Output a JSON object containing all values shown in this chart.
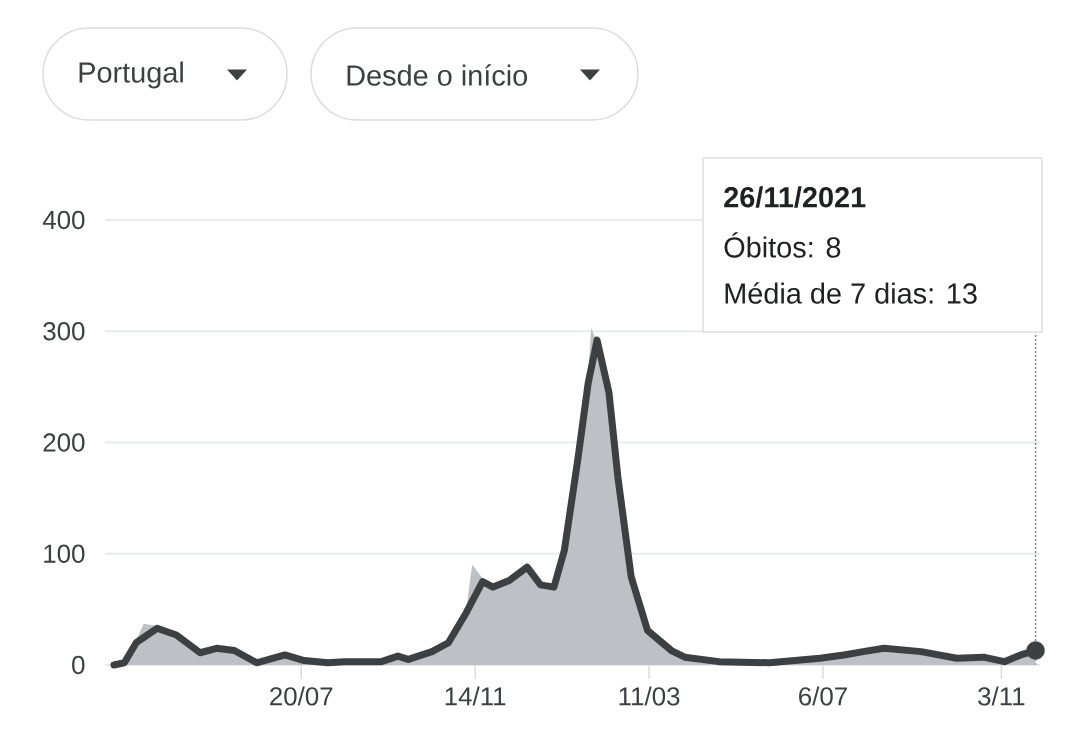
{
  "chart_data": {
    "type": "area",
    "annotations": [
      "Portugal",
      "Desde o início",
      "26/11/2021",
      "Óbitos: 8",
      "Média de 7 dias: 13"
    ],
    "xlim": [
      "2020-03-10",
      "2021-11-29"
    ],
    "xticks": [
      {
        "value": "2020-07-20",
        "label": "20/07"
      },
      {
        "value": "2020-11-14",
        "label": "14/11"
      },
      {
        "value": "2021-03-11",
        "label": "11/03"
      },
      {
        "value": "2021-07-06",
        "label": "6/07"
      },
      {
        "value": "2021-11-03",
        "label": "3/11"
      }
    ],
    "ylim": [
      0,
      400
    ],
    "yticks": [
      0,
      100,
      200,
      300,
      400
    ],
    "grid": "y",
    "ref_lines": [
      {
        "axis": "x",
        "value": "2021-11-26",
        "line_style": "dotted",
        "color": "#80868b"
      }
    ],
    "series": [
      {
        "color": "#bdc1c6",
        "x": [
          "2020-03-16",
          "2020-03-23",
          "2020-03-31",
          "2020-04-05",
          "2020-04-14",
          "2020-04-27",
          "2020-05-13",
          "2020-05-24",
          "2020-06-05",
          "2020-06-20",
          "2020-07-09",
          "2020-07-22",
          "2020-08-07",
          "2020-08-18",
          "2020-09-12",
          "2020-09-23",
          "2020-09-30",
          "2020-10-16",
          "2020-10-27",
          "2020-11-08",
          "2020-11-12",
          "2020-11-19",
          "2020-11-26",
          "2020-12-07",
          "2020-12-19",
          "2020-12-28",
          "2021-01-06",
          "2021-01-13",
          "2021-01-22",
          "2021-01-29",
          "2021-01-31",
          "2021-02-04",
          "2021-02-12",
          "2021-02-18",
          "2021-02-27",
          "2021-03-10",
          "2021-03-26",
          "2021-04-04",
          "2021-04-27",
          "2021-05-31",
          "2021-07-04",
          "2021-07-20",
          "2021-08-02",
          "2021-08-16",
          "2021-09-10",
          "2021-10-04",
          "2021-10-22",
          "2021-11-05",
          "2021-11-16",
          "2021-11-26"
        ],
        "values": [
          0,
          3,
          22,
          37,
          35,
          28,
          12,
          15,
          13,
          3,
          9,
          4,
          2,
          3,
          3,
          9,
          5,
          13,
          22,
          50,
          90,
          78,
          72,
          78,
          92,
          70,
          72,
          108,
          190,
          260,
          303,
          290,
          250,
          172,
          82,
          33,
          14,
          7,
          3,
          2,
          6,
          9,
          14,
          15,
          12,
          6,
          7,
          3,
          9,
          8
        ]
      },
      {
        "type": "line",
        "color": "#3c4043",
        "x": [
          "2020-03-16",
          "2020-03-23",
          "2020-03-31",
          "2020-04-14",
          "2020-04-27",
          "2020-05-13",
          "2020-05-24",
          "2020-06-05",
          "2020-06-20",
          "2020-07-09",
          "2020-07-22",
          "2020-08-07",
          "2020-08-18",
          "2020-09-12",
          "2020-09-23",
          "2020-09-30",
          "2020-10-16",
          "2020-10-27",
          "2020-11-08",
          "2020-11-19",
          "2020-11-26",
          "2020-12-07",
          "2020-12-19",
          "2020-12-28",
          "2021-01-06",
          "2021-01-13",
          "2021-01-22",
          "2021-01-29",
          "2021-02-04",
          "2021-02-12",
          "2021-02-18",
          "2021-02-27",
          "2021-03-10",
          "2021-03-26",
          "2021-04-04",
          "2021-04-27",
          "2021-05-31",
          "2021-07-04",
          "2021-07-20",
          "2021-08-02",
          "2021-08-16",
          "2021-09-10",
          "2021-10-04",
          "2021-10-22",
          "2021-11-05",
          "2021-11-16",
          "2021-11-26"
        ],
        "values": [
          0,
          2,
          20,
          33,
          27,
          11,
          15,
          13,
          2,
          9,
          4,
          2,
          3,
          3,
          8,
          5,
          12,
          20,
          47,
          75,
          70,
          76,
          88,
          72,
          70,
          103,
          184,
          253,
          292,
          245,
          169,
          79,
          31,
          13,
          7,
          3,
          2,
          6,
          9,
          12,
          15,
          12,
          6,
          7,
          3,
          9,
          13
        ]
      },
      {
        "type": "scatter",
        "color": "#3c4043",
        "x": [
          "2021-11-26"
        ],
        "values": [
          13
        ]
      }
    ]
  }
}
